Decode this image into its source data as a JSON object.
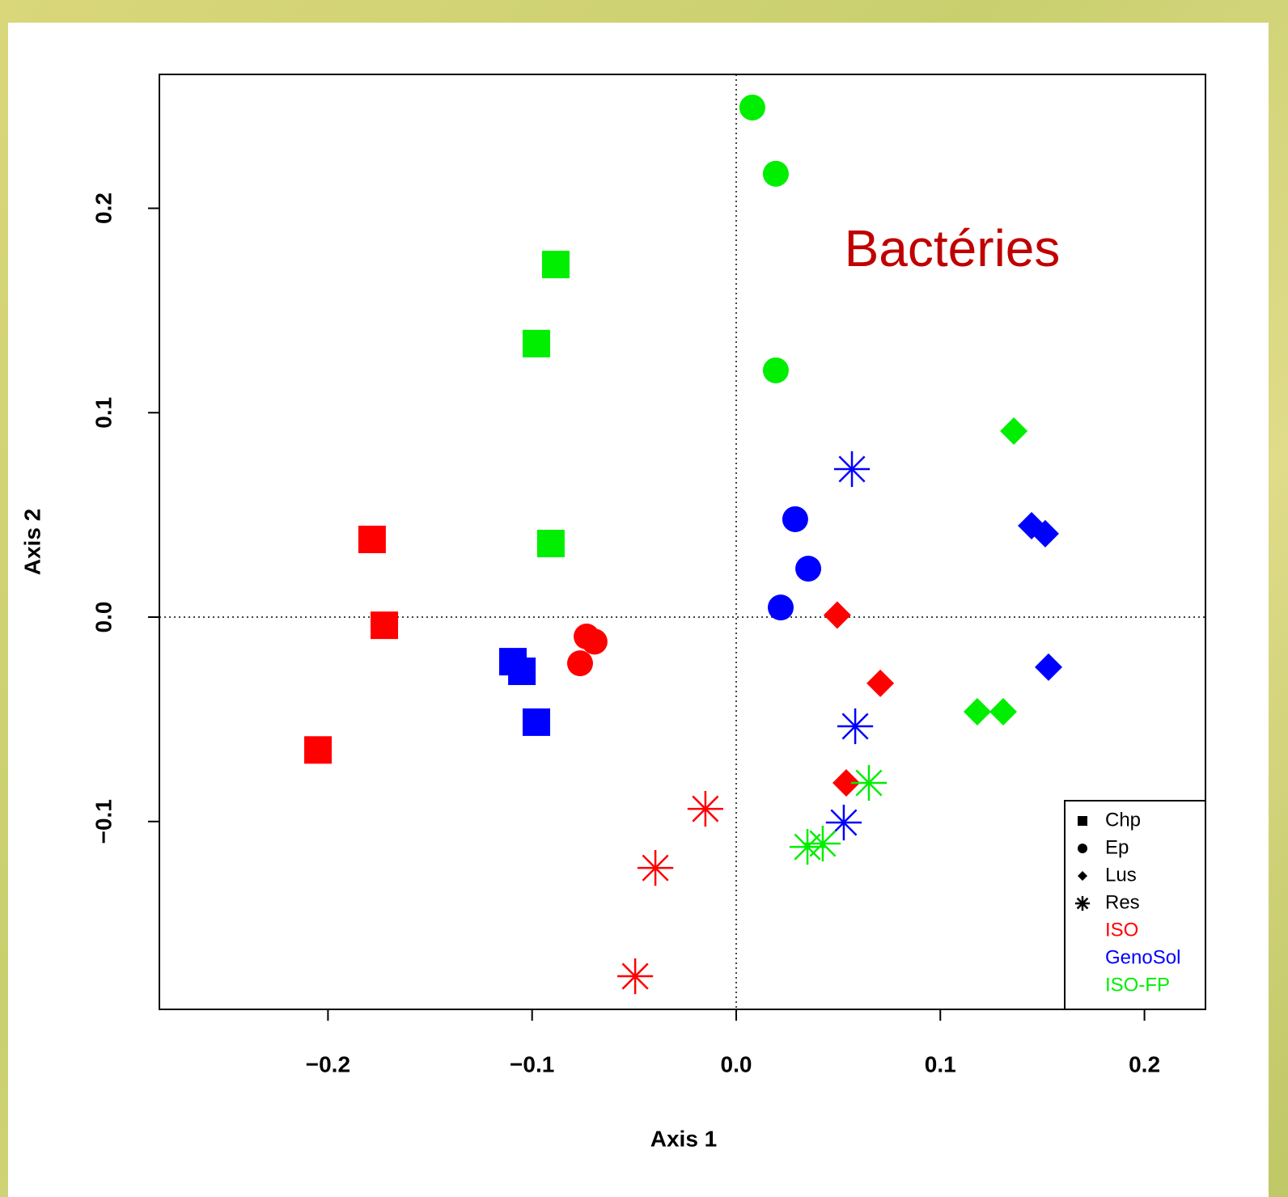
{
  "chart_data": {
    "type": "scatter",
    "annotation": "Bactéries",
    "xlabel": "Axis 1",
    "ylabel": "Axis 2",
    "xlim": [
      -0.2826,
      0.2299
    ],
    "ylim": [
      -0.1919,
      0.2655
    ],
    "xticks": [
      {
        "value": -0.2,
        "label": "−0.2"
      },
      {
        "value": -0.1,
        "label": "−0.1"
      },
      {
        "value": 0,
        "label": "0.0"
      },
      0.1,
      0.2
    ],
    "yticks": [
      {
        "value": -0.1,
        "label": "−0.1"
      },
      {
        "value": 0,
        "label": "0.0"
      },
      0.1,
      0.2
    ],
    "zero_lines": true,
    "legend": "lower right",
    "legend_shapes": [
      {
        "name": "Chp",
        "marker": "square"
      },
      {
        "name": "Ep",
        "marker": "circle"
      },
      {
        "name": "Lus",
        "marker": "diamond"
      },
      {
        "name": "Res",
        "marker": "asterisk"
      }
    ],
    "series": [
      {
        "name": "ISO",
        "color": "#ff0000",
        "x": [
          -0.1784,
          -0.1724,
          -0.2049,
          -0.0733,
          -0.0694,
          -0.0765,
          0.0495,
          0.0706,
          0.0539,
          -0.0151,
          -0.0396,
          -0.0495
        ],
        "y": [
          0.038,
          -0.004,
          -0.065,
          -0.0095,
          -0.012,
          -0.0226,
          0.001,
          -0.0324,
          -0.0811,
          -0.0938,
          -0.1227,
          -0.1757
        ],
        "markers": [
          "square",
          "square",
          "square",
          "circle",
          "circle",
          "circle",
          "diamond",
          "diamond",
          "diamond",
          "asterisk",
          "asterisk",
          "asterisk"
        ]
      },
      {
        "name": "GenoSol",
        "color": "#0000ff",
        "x": [
          -0.1094,
          -0.105,
          -0.0979,
          0.0289,
          0.0353,
          0.0218,
          0.1447,
          0.1514,
          0.153,
          0.0567,
          0.0583,
          0.0527
        ],
        "y": [
          -0.0218,
          -0.0265,
          -0.0514,
          0.0479,
          0.0237,
          0.0047,
          0.0447,
          0.0408,
          -0.0245,
          0.0724,
          -0.0534,
          -0.1005
        ],
        "markers": [
          "square",
          "square",
          "square",
          "circle",
          "circle",
          "circle",
          "diamond",
          "diamond",
          "diamond",
          "asterisk",
          "asterisk",
          "asterisk"
        ]
      },
      {
        "name": "ISO-FP",
        "color": "#00ee00",
        "x": [
          -0.0884,
          -0.0979,
          -0.0908,
          0.0079,
          0.0194,
          0.0194,
          0.136,
          0.1181,
          0.1308,
          0.065,
          0.0349,
          0.0424
        ],
        "y": [
          0.1725,
          0.1338,
          0.036,
          0.2493,
          0.2169,
          0.1207,
          0.091,
          -0.0463,
          -0.0463,
          -0.0811,
          -0.1124,
          -0.1108
        ],
        "markers": [
          "square",
          "square",
          "square",
          "circle",
          "circle",
          "circle",
          "diamond",
          "diamond",
          "diamond",
          "asterisk",
          "asterisk",
          "asterisk"
        ]
      }
    ]
  }
}
